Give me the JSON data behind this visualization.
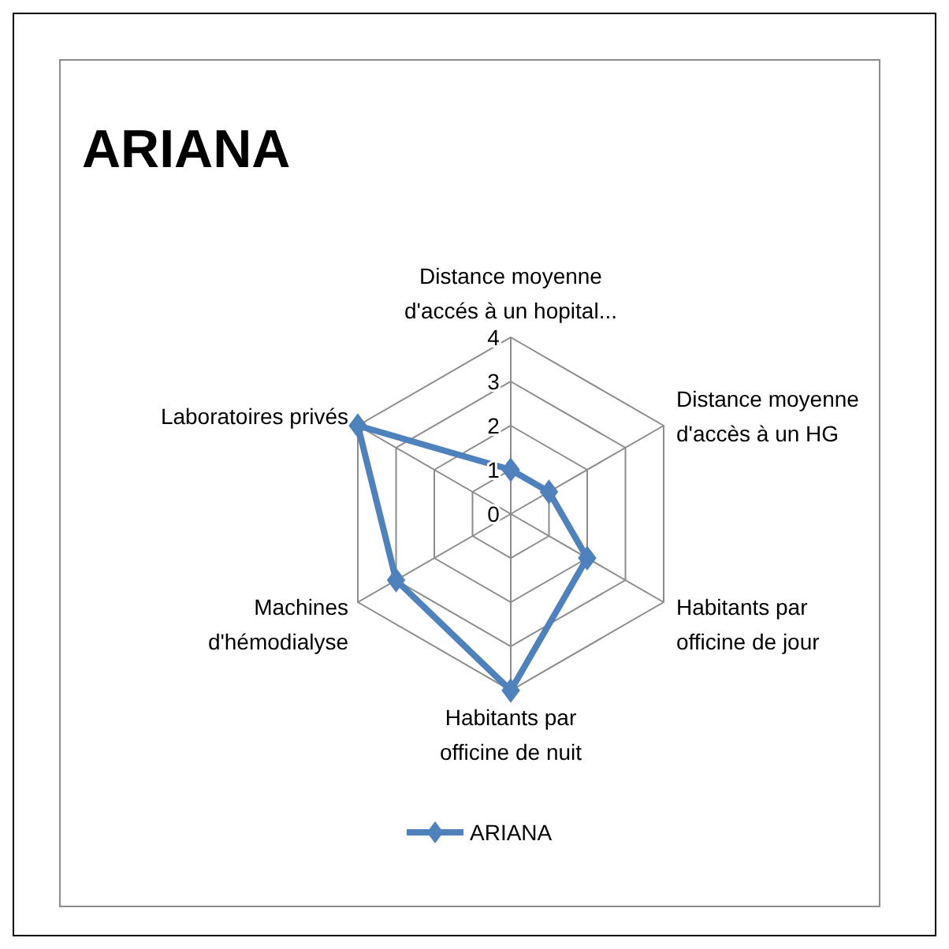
{
  "chart_data": {
    "type": "radar",
    "title": "ARIANA",
    "categories": [
      "Distance moyenne d'accés à un hopital...",
      "Distance moyenne d'accès à un HG",
      "Habitants par officine de jour",
      "Habitants par officine de nuit",
      "Machines d'hémodialyse",
      "Laboratoires privés"
    ],
    "series": [
      {
        "name": "ARIANA",
        "color": "#4f81bd",
        "values": [
          1,
          1,
          2,
          4,
          3,
          4
        ]
      }
    ],
    "ylim": [
      0,
      4
    ],
    "yticks": [
      0,
      1,
      2,
      3,
      4
    ],
    "grid": true,
    "legend": "bottom",
    "marker": "diamond",
    "line_style": "solid"
  }
}
